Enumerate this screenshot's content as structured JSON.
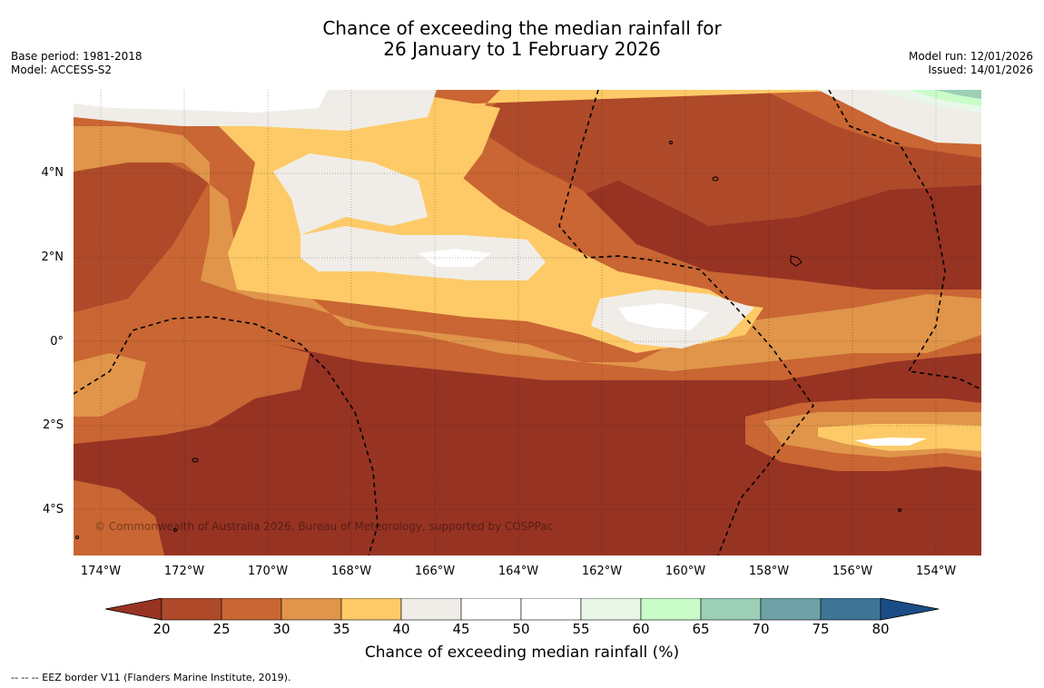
{
  "title": {
    "line1": "Chance of exceeding the median rainfall for",
    "line2": "26 January to 1 February 2026"
  },
  "meta_left": {
    "base_period": "Base period: 1981-2018",
    "model": "Model: ACCESS-S2"
  },
  "meta_right": {
    "model_run": "Model run: 12/01/2026",
    "issued": "Issued: 14/01/2026"
  },
  "map": {
    "lat_labels": [
      "4°N",
      "2°N",
      "0°",
      "2°S",
      "4°S"
    ],
    "lon_labels": [
      "174°W",
      "172°W",
      "170°W",
      "168°W",
      "166°W",
      "164°W",
      "162°W",
      "160°W",
      "158°W",
      "156°W",
      "154°W"
    ],
    "copyright": "© Commonwealth of Australia 2026, Bureau of Meteorology, supported by COSPPac"
  },
  "colorbar": {
    "title": "Chance of exceeding median rainfall (%)",
    "ticks": [
      "20",
      "25",
      "30",
      "35",
      "40",
      "45",
      "50",
      "55",
      "60",
      "65",
      "70",
      "75",
      "80"
    ],
    "colors": [
      "#973323",
      "#ae4a2a",
      "#c96633",
      "#e0954a",
      "#fdca67",
      "#f0ede8",
      "#ffffff",
      "#ffffff",
      "#e9f7e8",
      "#c9fcc9",
      "#9ccfb6",
      "#6ea1a6",
      "#3e7597",
      "#1a4d86"
    ]
  },
  "legend_note": "--  --  -- EEZ border V11 (Flanders Marine Institute, 2019)."
}
